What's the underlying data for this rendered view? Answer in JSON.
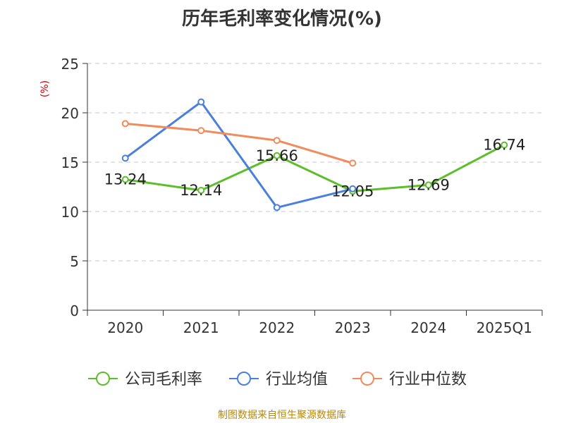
{
  "chart_data": {
    "type": "line",
    "title": "历年毛利率变化情况(%)",
    "ylabel": "(%)",
    "xlabel": "",
    "categories": [
      "2020",
      "2021",
      "2022",
      "2023",
      "2024",
      "2025Q1"
    ],
    "ylim": [
      0,
      25
    ],
    "yticks": [
      "0",
      "5",
      "10",
      "15",
      "20",
      "25"
    ],
    "grid": "horizontal-dashed",
    "legend_position": "bottom",
    "series": [
      {
        "name": "公司毛利率",
        "color": "#5cbf2a",
        "labeled": true,
        "values": [
          13.24,
          12.14,
          15.66,
          12.05,
          12.69,
          16.74
        ],
        "labels": [
          "13.24",
          "12.14",
          "15.66",
          "12.05",
          "12.69",
          "16.74"
        ]
      },
      {
        "name": "行业均值",
        "color": "#4a7fdc",
        "labeled": false,
        "values": [
          15.4,
          21.1,
          10.4,
          12.3,
          null,
          null
        ]
      },
      {
        "name": "行业中位数",
        "color": "#f28b5c",
        "labeled": false,
        "values": [
          18.9,
          18.2,
          17.2,
          14.9,
          null,
          null
        ]
      }
    ]
  },
  "source": "制图数据来自恒生聚源数据库"
}
